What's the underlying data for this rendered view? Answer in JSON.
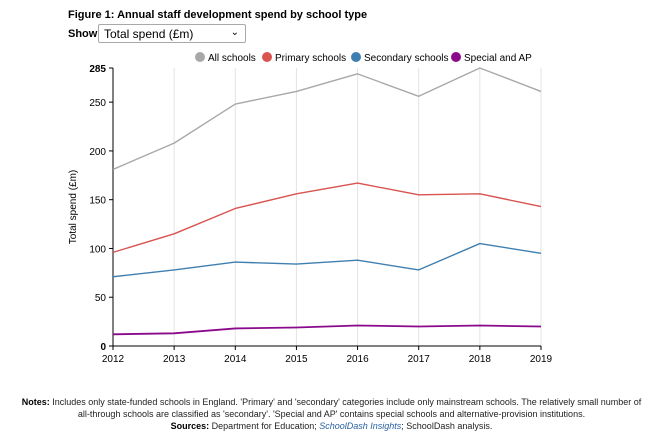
{
  "figure": {
    "title": "Figure 1: Annual staff development spend by school type"
  },
  "controls": {
    "show_label": "Show:",
    "selected": "Total spend (£m)",
    "chevron_icon": "chevron-down-icon"
  },
  "chart_data": {
    "type": "line",
    "x": [
      2012,
      2013,
      2014,
      2015,
      2016,
      2017,
      2018,
      2019
    ],
    "ylabel": "Total spend (£m)",
    "xlabel": "",
    "ylim": [
      0,
      285
    ],
    "yticks": [
      0,
      50,
      100,
      150,
      200,
      250,
      285
    ],
    "grid": "vertical",
    "legend_position": "top",
    "series": [
      {
        "name": "All schools",
        "color": "#a8a8a8",
        "values": [
          181,
          208,
          248,
          261,
          279,
          256,
          285,
          261
        ]
      },
      {
        "name": "Primary schools",
        "color": "#d9534f",
        "values": [
          96,
          115,
          141,
          156,
          167,
          155,
          156,
          143
        ]
      },
      {
        "name": "Secondary schools",
        "color": "#3f7fb0",
        "values": [
          71,
          78,
          86,
          84,
          88,
          78,
          105,
          95
        ]
      },
      {
        "name": "Special and AP",
        "color": "#8b0a8c",
        "values": [
          12,
          13,
          18,
          19,
          21,
          20,
          21,
          20
        ]
      }
    ]
  },
  "notes": {
    "notes_label": "Notes:",
    "notes_text": "Includes only state-funded schools in England. 'Primary' and 'secondary' categories include only mainstream schools. The relatively small number of all-through schools are classified as 'secondary'. 'Special and AP' contains special schools and alternative-provision institutions.",
    "sources_label": "Sources:",
    "sources_prefix": "Department for Education;",
    "sources_link": "SchoolDash Insights",
    "sources_suffix": "; SchoolDash analysis."
  }
}
